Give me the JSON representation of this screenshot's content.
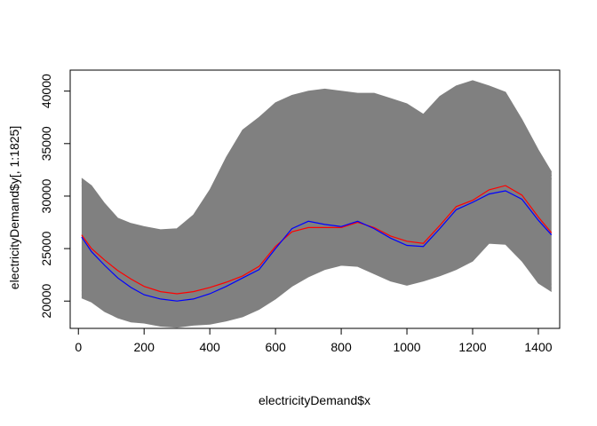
{
  "chart_data": {
    "type": "line",
    "title": "",
    "xlabel": "electricityDemand$x",
    "ylabel": "electricityDemand$y[, 1:1825]",
    "xlim": [
      -25,
      1465
    ],
    "ylim": [
      17400,
      42000
    ],
    "xticks": [
      0,
      200,
      400,
      600,
      800,
      1000,
      1200,
      1400
    ],
    "yticks": [
      20000,
      25000,
      30000,
      35000,
      40000
    ],
    "grid": false,
    "legend": "none",
    "colors": {
      "curves": "#808080",
      "red": "#ff0000",
      "blue": "#0000ff",
      "axis": "#000000"
    },
    "band": {
      "name": "",
      "n_curves": 1825,
      "x": [
        10,
        40,
        80,
        120,
        160,
        200,
        250,
        300,
        350,
        400,
        450,
        500,
        550,
        600,
        650,
        700,
        750,
        800,
        850,
        900,
        950,
        1000,
        1050,
        1100,
        1150,
        1200,
        1250,
        1300,
        1350,
        1400,
        1440
      ],
      "max": [
        31700,
        31000,
        29300,
        27900,
        27400,
        27100,
        26800,
        26900,
        28200,
        30600,
        33700,
        36300,
        37500,
        38900,
        39600,
        40000,
        40200,
        40000,
        39800,
        39800,
        39300,
        38800,
        37800,
        39500,
        40500,
        41000,
        40500,
        39900,
        37300,
        34400,
        32300
      ],
      "min": [
        20300,
        19900,
        19000,
        18400,
        18000,
        17900,
        17600,
        17500,
        17700,
        17800,
        18100,
        18500,
        19200,
        20200,
        21400,
        22300,
        23000,
        23400,
        23300,
        22600,
        21900,
        21500,
        21900,
        22400,
        23000,
        23800,
        25500,
        25400,
        23800,
        21700,
        20900
      ]
    },
    "series": [
      {
        "color": "red",
        "x": [
          10,
          40,
          80,
          120,
          160,
          200,
          250,
          300,
          350,
          400,
          450,
          500,
          550,
          600,
          650,
          700,
          750,
          800,
          850,
          900,
          950,
          1000,
          1050,
          1100,
          1150,
          1200,
          1250,
          1300,
          1350,
          1400,
          1440
        ],
        "values": [
          26300,
          25000,
          23900,
          22900,
          22100,
          21400,
          20900,
          20700,
          20900,
          21300,
          21800,
          22400,
          23300,
          25200,
          26600,
          27000,
          27000,
          27000,
          27500,
          27000,
          26200,
          25700,
          25500,
          27200,
          29000,
          29600,
          30600,
          31000,
          30100,
          28000,
          26500
        ]
      },
      {
        "color": "blue",
        "x": [
          10,
          40,
          80,
          120,
          160,
          200,
          250,
          300,
          350,
          400,
          450,
          500,
          550,
          600,
          650,
          700,
          750,
          800,
          850,
          900,
          950,
          1000,
          1050,
          1100,
          1150,
          1200,
          1250,
          1300,
          1350,
          1400,
          1440
        ],
        "values": [
          26100,
          24700,
          23400,
          22200,
          21300,
          20600,
          20200,
          20000,
          20200,
          20700,
          21400,
          22200,
          23000,
          25000,
          26900,
          27600,
          27300,
          27100,
          27600,
          26900,
          26000,
          25300,
          25200,
          26900,
          28700,
          29400,
          30200,
          30500,
          29700,
          27700,
          26300
        ]
      }
    ]
  }
}
